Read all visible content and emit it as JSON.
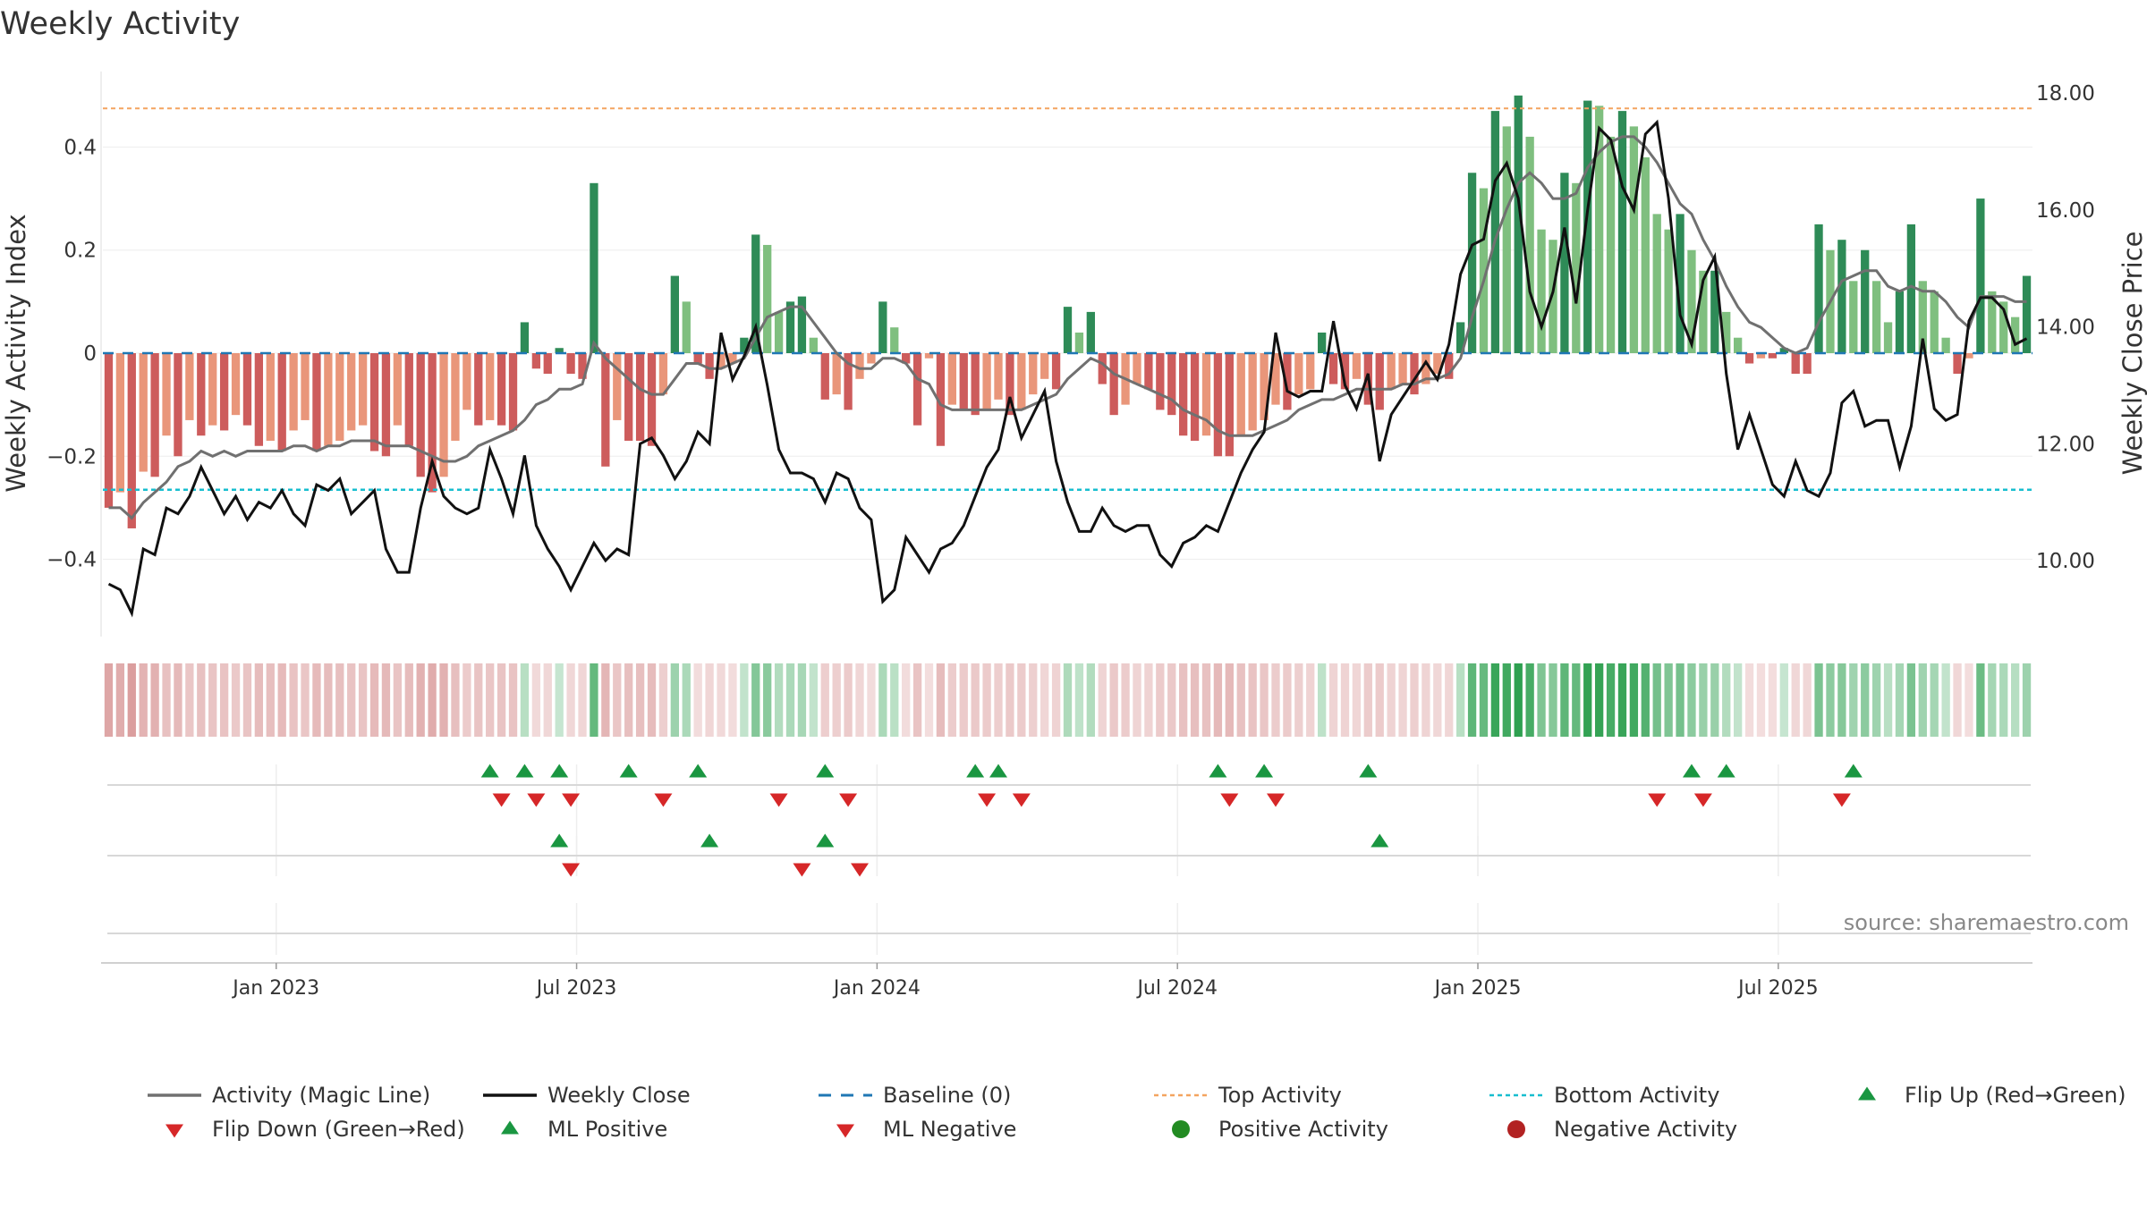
{
  "chart_data": {
    "type": "bar",
    "title": "Weekly Activity",
    "ylabel_left": "Weekly Activity Index",
    "ylabel_right": "Weekly Close Price",
    "source": "source: sharemaestro.com",
    "ylim_left": [
      -0.55,
      0.55
    ],
    "ylim_right": [
      8.7,
      18.4
    ],
    "yticks_left": [
      {
        "value": 0.4,
        "label": "0.4"
      },
      {
        "value": 0.2,
        "label": "0.2"
      },
      {
        "value": 0,
        "label": "0"
      },
      {
        "value": -0.2,
        "label": "−0.2"
      },
      {
        "value": -0.4,
        "label": "−0.4"
      }
    ],
    "yticks_right": [
      {
        "value": 18,
        "label": "18.00"
      },
      {
        "value": 16,
        "label": "16.00"
      },
      {
        "value": 14,
        "label": "14.00"
      },
      {
        "value": 12,
        "label": "12.00"
      },
      {
        "value": 10,
        "label": "10.00"
      }
    ],
    "xticks": [
      {
        "index": 14.5,
        "label": "Jan 2023"
      },
      {
        "index": 40.5,
        "label": "Jul 2023"
      },
      {
        "index": 66.5,
        "label": "Jan 2024"
      },
      {
        "index": 92.5,
        "label": "Jul 2024"
      },
      {
        "index": 118.5,
        "label": "Jan 2025"
      },
      {
        "index": 144.5,
        "label": "Jul 2025"
      }
    ],
    "top_activity": 0.475,
    "bottom_activity": -0.265,
    "colors": {
      "strong_green": "#2e8b57",
      "light_green": "#7fbf7f",
      "strong_red": "#cd5c5c",
      "light_red": "#e9967a",
      "magic_line": "#707070",
      "close_line": "#111111",
      "baseline": "#1f77b4",
      "top": "#f4a460",
      "bottom": "#17becf",
      "flip_up": "#1a9641",
      "flip_down": "#d62728",
      "positive": "#228b22",
      "negative": "#b22222"
    },
    "series": [
      {
        "name": "Weekly Activity Index",
        "values": [
          -0.3,
          -0.27,
          -0.34,
          -0.23,
          -0.24,
          -0.16,
          -0.2,
          -0.13,
          -0.16,
          -0.14,
          -0.15,
          -0.12,
          -0.14,
          -0.18,
          -0.17,
          -0.19,
          -0.15,
          -0.13,
          -0.19,
          -0.18,
          -0.17,
          -0.15,
          -0.14,
          -0.19,
          -0.2,
          -0.14,
          -0.18,
          -0.24,
          -0.27,
          -0.24,
          -0.17,
          -0.11,
          -0.14,
          -0.13,
          -0.14,
          -0.15,
          0.06,
          -0.03,
          -0.04,
          0.01,
          -0.04,
          -0.05,
          0.33,
          -0.22,
          -0.13,
          -0.17,
          -0.17,
          -0.18,
          -0.08,
          0.15,
          0.1,
          -0.02,
          -0.05,
          -0.03,
          -0.02,
          0.03,
          0.23,
          0.21,
          0.08,
          0.1,
          0.11,
          0.03,
          -0.09,
          -0.08,
          -0.11,
          -0.05,
          -0.02,
          0.1,
          0.05,
          -0.02,
          -0.14,
          -0.01,
          -0.18,
          -0.1,
          -0.11,
          -0.12,
          -0.11,
          -0.09,
          -0.12,
          -0.11,
          -0.08,
          -0.05,
          -0.07,
          0.09,
          0.04,
          0.08,
          -0.06,
          -0.12,
          -0.1,
          -0.06,
          -0.07,
          -0.11,
          -0.12,
          -0.16,
          -0.17,
          -0.16,
          -0.2,
          -0.2,
          -0.16,
          -0.15,
          -0.13,
          -0.1,
          -0.11,
          -0.08,
          -0.07,
          0.04,
          -0.06,
          -0.07,
          -0.05,
          -0.1,
          -0.11,
          -0.07,
          -0.06,
          -0.08,
          -0.06,
          -0.04,
          -0.05,
          0.06,
          0.35,
          0.32,
          0.47,
          0.44,
          0.5,
          0.42,
          0.24,
          0.22,
          0.35,
          0.33,
          0.49,
          0.48,
          0.42,
          0.47,
          0.44,
          0.38,
          0.27,
          0.24,
          0.27,
          0.2,
          0.16,
          0.16,
          0.08,
          0.03,
          -0.02,
          -0.01,
          -0.01,
          0.01,
          -0.04,
          -0.04,
          0.25,
          0.2,
          0.22,
          0.14,
          0.2,
          0.14,
          0.06,
          0.12,
          0.25,
          0.14,
          0.12,
          0.03,
          -0.04,
          -0.01,
          0.3,
          0.12,
          0.1,
          0.07,
          0.15
        ]
      },
      {
        "name": "Activity (Magic Line)",
        "values": [
          -0.3,
          -0.3,
          -0.32,
          -0.29,
          -0.27,
          -0.25,
          -0.22,
          -0.21,
          -0.19,
          -0.2,
          -0.19,
          -0.2,
          -0.19,
          -0.19,
          -0.19,
          -0.19,
          -0.18,
          -0.18,
          -0.19,
          -0.18,
          -0.18,
          -0.17,
          -0.17,
          -0.17,
          -0.18,
          -0.18,
          -0.18,
          -0.19,
          -0.2,
          -0.21,
          -0.21,
          -0.2,
          -0.18,
          -0.17,
          -0.16,
          -0.15,
          -0.13,
          -0.1,
          -0.09,
          -0.07,
          -0.07,
          -0.06,
          0.02,
          -0.01,
          -0.03,
          -0.05,
          -0.07,
          -0.08,
          -0.08,
          -0.05,
          -0.02,
          -0.02,
          -0.03,
          -0.03,
          -0.02,
          -0.01,
          0.03,
          0.07,
          0.08,
          0.09,
          0.09,
          0.06,
          0.03,
          0.0,
          -0.02,
          -0.03,
          -0.03,
          -0.01,
          -0.01,
          -0.02,
          -0.05,
          -0.06,
          -0.1,
          -0.11,
          -0.11,
          -0.11,
          -0.11,
          -0.11,
          -0.11,
          -0.11,
          -0.1,
          -0.09,
          -0.08,
          -0.05,
          -0.03,
          -0.01,
          -0.02,
          -0.04,
          -0.05,
          -0.06,
          -0.07,
          -0.08,
          -0.09,
          -0.11,
          -0.12,
          -0.13,
          -0.15,
          -0.16,
          -0.16,
          -0.16,
          -0.15,
          -0.14,
          -0.13,
          -0.11,
          -0.1,
          -0.09,
          -0.09,
          -0.08,
          -0.07,
          -0.07,
          -0.07,
          -0.07,
          -0.06,
          -0.06,
          -0.05,
          -0.05,
          -0.04,
          -0.01,
          0.07,
          0.14,
          0.22,
          0.28,
          0.33,
          0.35,
          0.33,
          0.3,
          0.3,
          0.31,
          0.36,
          0.39,
          0.41,
          0.42,
          0.42,
          0.4,
          0.37,
          0.33,
          0.29,
          0.27,
          0.22,
          0.18,
          0.13,
          0.09,
          0.06,
          0.05,
          0.03,
          0.01,
          0.0,
          0.01,
          0.06,
          0.1,
          0.14,
          0.15,
          0.16,
          0.16,
          0.13,
          0.12,
          0.13,
          0.12,
          0.12,
          0.1,
          0.07,
          0.05,
          0.11,
          0.11,
          0.11,
          0.1,
          0.1
        ]
      },
      {
        "name": "Weekly Close",
        "values": [
          9.6,
          9.5,
          9.1,
          10.2,
          10.1,
          10.9,
          10.8,
          11.1,
          11.6,
          11.2,
          10.8,
          11.1,
          10.7,
          11.0,
          10.9,
          11.2,
          10.8,
          10.6,
          11.3,
          11.2,
          11.4,
          10.8,
          11.0,
          11.2,
          10.2,
          9.8,
          9.8,
          10.9,
          11.7,
          11.1,
          10.9,
          10.8,
          10.9,
          11.9,
          11.4,
          10.8,
          11.8,
          10.6,
          10.2,
          9.9,
          9.5,
          9.9,
          10.3,
          10.0,
          10.2,
          10.1,
          12.0,
          12.1,
          11.8,
          11.4,
          11.7,
          12.2,
          12.0,
          13.9,
          13.1,
          13.5,
          14.0,
          13.0,
          11.9,
          11.5,
          11.5,
          11.4,
          11.0,
          11.5,
          11.4,
          10.9,
          10.7,
          9.3,
          9.5,
          10.4,
          10.1,
          9.8,
          10.2,
          10.3,
          10.6,
          11.1,
          11.6,
          11.9,
          12.8,
          12.1,
          12.5,
          12.9,
          11.7,
          11.0,
          10.5,
          10.5,
          10.9,
          10.6,
          10.5,
          10.6,
          10.6,
          10.1,
          9.9,
          10.3,
          10.4,
          10.6,
          10.5,
          11.0,
          11.5,
          11.9,
          12.2,
          13.9,
          12.9,
          12.8,
          12.9,
          12.9,
          14.1,
          13.0,
          12.6,
          13.2,
          11.7,
          12.5,
          12.8,
          13.1,
          13.4,
          13.1,
          13.7,
          14.9,
          15.4,
          15.5,
          16.5,
          16.8,
          16.2,
          14.6,
          14.0,
          14.6,
          15.7,
          14.4,
          16.0,
          17.4,
          17.2,
          16.4,
          16.0,
          17.3,
          17.5,
          16.2,
          14.2,
          13.7,
          14.8,
          15.2,
          13.2,
          11.9,
          12.5,
          11.9,
          11.3,
          11.1,
          11.7,
          11.2,
          11.1,
          11.5,
          12.7,
          12.9,
          12.3,
          12.4,
          12.4,
          11.6,
          12.3,
          13.8,
          12.6,
          12.4,
          12.5,
          14.1,
          14.5,
          14.5,
          14.3,
          13.7,
          13.8
        ]
      },
      {
        "name": "Flip Up (Red→Green)",
        "indices": [
          33,
          36,
          39,
          45,
          51,
          62,
          75,
          77,
          96,
          100,
          109,
          137,
          140,
          151
        ]
      },
      {
        "name": "Flip Down (Green→Red)",
        "indices": [
          34,
          37,
          40,
          48,
          58,
          64,
          76,
          79,
          97,
          101,
          134,
          138,
          150
        ]
      },
      {
        "name": "ML Positive",
        "indices": [
          39,
          52,
          62,
          110
        ]
      },
      {
        "name": "ML Negative",
        "indices": [
          40,
          60,
          65
        ]
      }
    ],
    "legend": {
      "position": "bottom",
      "items": [
        {
          "label": "Activity (Magic Line)",
          "kind": "line",
          "color": "#707070"
        },
        {
          "label": "Weekly Close",
          "kind": "line",
          "color": "#111111"
        },
        {
          "label": "Baseline (0)",
          "kind": "dash",
          "color": "#1f77b4"
        },
        {
          "label": "Top Activity",
          "kind": "dot",
          "color": "#f4a460"
        },
        {
          "label": "Bottom Activity",
          "kind": "dot",
          "color": "#17becf"
        },
        {
          "label": "Flip Up (Red→Green)",
          "kind": "up",
          "color": "#1a9641"
        },
        {
          "label": "Flip Down (Green→Red)",
          "kind": "down",
          "color": "#d62728"
        },
        {
          "label": "ML Positive",
          "kind": "up",
          "color": "#1a9641"
        },
        {
          "label": "ML Negative",
          "kind": "down",
          "color": "#d62728"
        },
        {
          "label": "Positive Activity",
          "kind": "circle",
          "color": "#228b22"
        },
        {
          "label": "Negative Activity",
          "kind": "circle",
          "color": "#b22222"
        }
      ]
    }
  }
}
